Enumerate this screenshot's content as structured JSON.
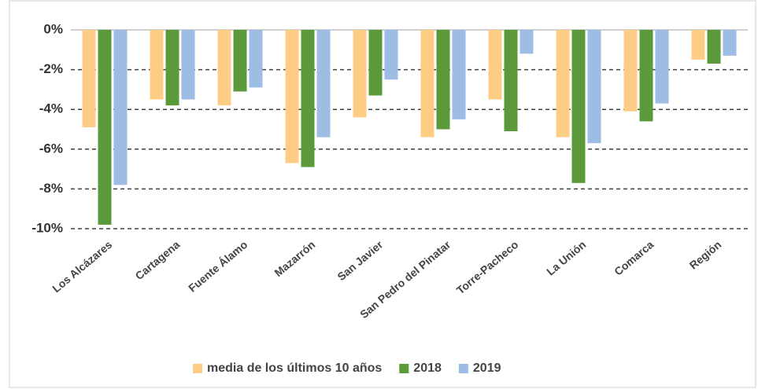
{
  "chart_data": {
    "type": "bar",
    "categories": [
      "Los Alcázares",
      "Cartagena",
      "Fuente Álamo",
      "Mazarrón",
      "San Javier",
      "San Pedro del Pinatar",
      "Torre-Pacheco",
      "La Unión",
      "Comarca",
      "Región"
    ],
    "series": [
      {
        "name": "media de los últimos 10 años",
        "color": "#fdcd86",
        "values": [
          -4.9,
          -3.5,
          -3.8,
          -6.7,
          -4.4,
          -5.4,
          -3.5,
          -5.4,
          -4.1,
          -1.5
        ]
      },
      {
        "name": "2018",
        "color": "#5a9a3a",
        "values": [
          -9.8,
          -3.8,
          -3.1,
          -6.9,
          -3.3,
          -5.0,
          -5.1,
          -7.7,
          -4.6,
          -1.7
        ]
      },
      {
        "name": "2019",
        "color": "#9dbde4",
        "values": [
          -7.8,
          -3.5,
          -2.9,
          -5.4,
          -2.5,
          -4.5,
          -1.2,
          -5.7,
          -3.7,
          -1.3
        ]
      }
    ],
    "ylim": [
      -10,
      0
    ],
    "yticks": [
      {
        "value": 0,
        "label": "0%"
      },
      {
        "value": -2,
        "label": "-2%"
      },
      {
        "value": -4,
        "label": "-4%"
      },
      {
        "value": -6,
        "label": "-6%"
      },
      {
        "value": -8,
        "label": "-8%"
      },
      {
        "value": -10,
        "label": "-10%"
      }
    ],
    "grid": true,
    "legend": "bottom"
  }
}
